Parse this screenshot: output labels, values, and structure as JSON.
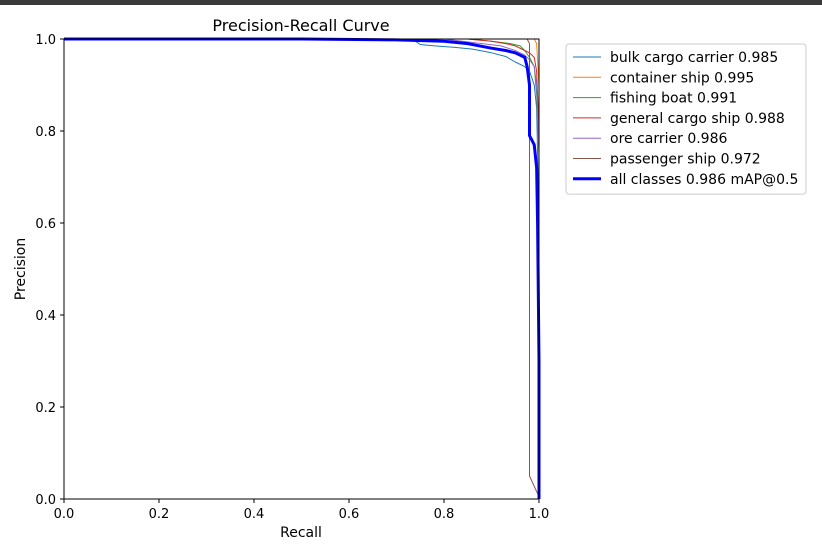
{
  "chart_data": {
    "type": "line",
    "title": "Precision-Recall Curve",
    "xlabel": "Recall",
    "ylabel": "Precision",
    "xlim": [
      0,
      1
    ],
    "ylim": [
      0,
      1
    ],
    "xticks": [
      "0.0",
      "0.2",
      "0.4",
      "0.6",
      "0.8",
      "1.0"
    ],
    "yticks": [
      "0.0",
      "0.2",
      "0.4",
      "0.6",
      "0.8",
      "1.0"
    ],
    "grid": false,
    "legend_position": "upper-right-outside",
    "series": [
      {
        "name": "bulk cargo carrier 0.985",
        "color": "#1f77b4",
        "width": 1,
        "x": [
          0,
          0.5,
          0.7,
          0.74,
          0.75,
          0.78,
          0.82,
          0.86,
          0.9,
          0.93,
          0.95,
          0.97,
          0.98,
          0.99,
          0.995,
          1.0,
          1.0
        ],
        "y": [
          1.0,
          1.0,
          1.0,
          0.995,
          0.988,
          0.985,
          0.982,
          0.978,
          0.97,
          0.962,
          0.95,
          0.94,
          0.93,
          0.9,
          0.85,
          0.6,
          0.0
        ]
      },
      {
        "name": "container ship 0.995",
        "color": "#ff7f0e",
        "width": 1,
        "x": [
          0,
          0.9,
          0.95,
          0.99,
          0.995,
          1.0,
          1.0
        ],
        "y": [
          1.0,
          1.0,
          1.0,
          1.0,
          0.99,
          0.9,
          0.0
        ]
      },
      {
        "name": "fishing boat 0.991",
        "color": "#2ca02c",
        "width": 1,
        "x": [
          0,
          0.85,
          0.9,
          0.94,
          0.96,
          0.97,
          0.98,
          0.99,
          0.995,
          1.0,
          1.0
        ],
        "y": [
          1.0,
          1.0,
          0.995,
          0.99,
          0.985,
          0.975,
          0.96,
          0.94,
          0.88,
          0.75,
          0.0
        ]
      },
      {
        "name": "general cargo ship 0.988",
        "color": "#d62728",
        "width": 1,
        "x": [
          0,
          0.85,
          0.9,
          0.93,
          0.95,
          0.97,
          0.98,
          0.99,
          0.995,
          1.0,
          1.0
        ],
        "y": [
          1.0,
          1.0,
          0.995,
          0.99,
          0.985,
          0.975,
          0.97,
          0.96,
          0.93,
          0.8,
          0.0
        ]
      },
      {
        "name": "ore carrier 0.986",
        "color": "#9467bd",
        "width": 1,
        "x": [
          0,
          0.8,
          0.88,
          0.92,
          0.95,
          0.97,
          0.98,
          0.99,
          0.995,
          1.0,
          1.0
        ],
        "y": [
          1.0,
          1.0,
          0.99,
          0.985,
          0.975,
          0.965,
          0.955,
          0.94,
          0.9,
          0.75,
          0.0
        ]
      },
      {
        "name": "passenger ship 0.972",
        "color": "#8c564b",
        "width": 1,
        "x": [
          0,
          0.9,
          0.95,
          0.975,
          0.98,
          0.98,
          0.98,
          1.0,
          1.0
        ],
        "y": [
          1.0,
          1.0,
          1.0,
          1.0,
          0.99,
          0.5,
          0.05,
          0.005,
          0.0
        ]
      },
      {
        "name": "all classes 0.986 mAP@0.5",
        "color": "#0000ff",
        "width": 3,
        "x": [
          0,
          0.5,
          0.7,
          0.8,
          0.85,
          0.9,
          0.93,
          0.95,
          0.97,
          0.975,
          0.98,
          0.98,
          0.99,
          0.995,
          0.997,
          1.0,
          1.0
        ],
        "y": [
          1.0,
          1.0,
          0.998,
          0.995,
          0.99,
          0.98,
          0.975,
          0.97,
          0.96,
          0.94,
          0.9,
          0.79,
          0.77,
          0.72,
          0.6,
          0.3,
          0.0
        ]
      }
    ]
  }
}
